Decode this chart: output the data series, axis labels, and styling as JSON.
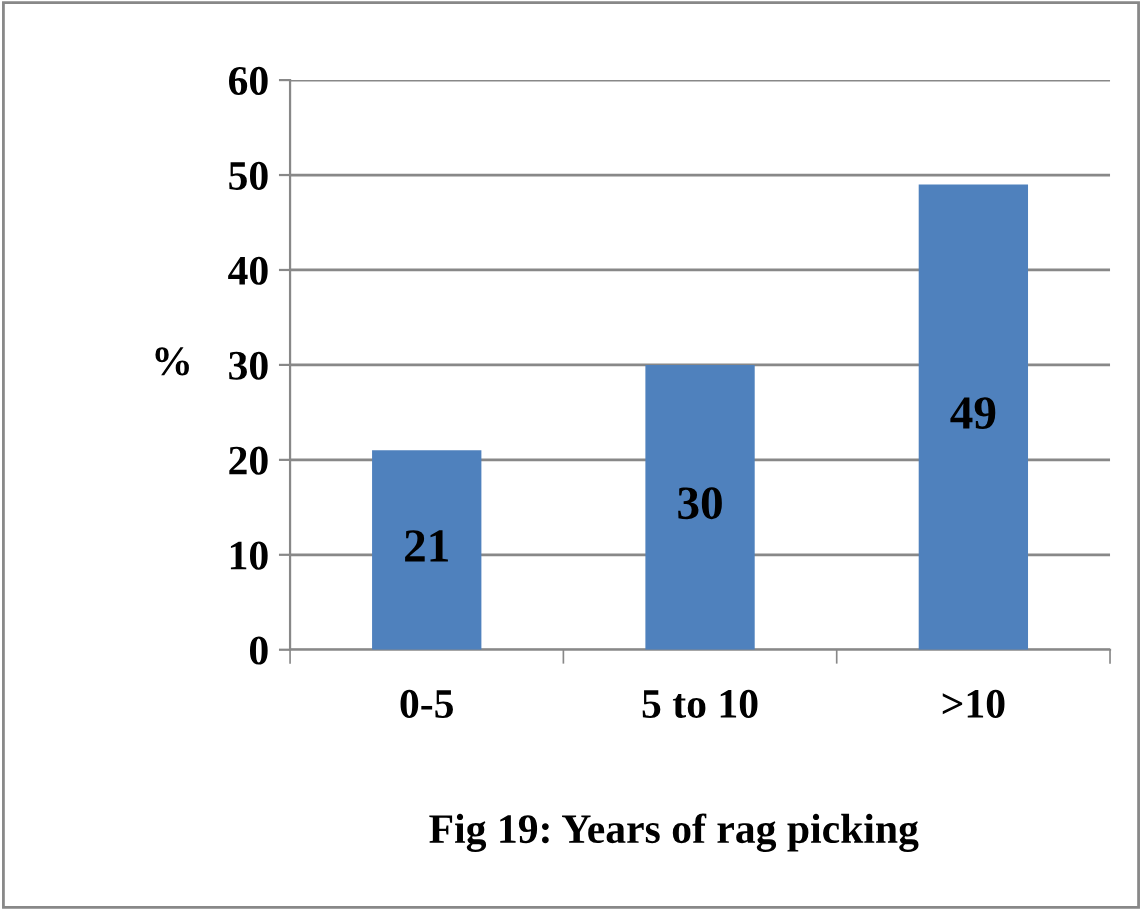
{
  "chart_data": {
    "type": "bar",
    "title": "Fig 19: Years of rag picking",
    "ylabel": "%",
    "categories": [
      "0-5",
      "5 to 10",
      ">10"
    ],
    "values": [
      21,
      30,
      49
    ],
    "color": "#4f81bd",
    "ylim": [
      0,
      60
    ],
    "yticks": [
      0,
      10,
      20,
      30,
      40,
      50,
      60
    ],
    "grid": "y",
    "data_labels": true,
    "legend": false
  }
}
